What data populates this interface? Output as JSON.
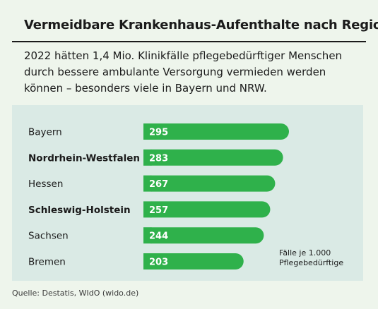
{
  "title": "Vermeidbare Krankenhaus-Aufenthalte nach Region",
  "subtitle": "2022 hätten 1,4 Mio. Klinikfälle pflegebedürftiger Menschen durch bessere ambulante Versorgung vermieden werden können – besonders viele in Bayern und NRW.",
  "source": "Quelle: Destatis, WIdO (wido.de)",
  "unit_label": "Fälle je 1.000",
  "unit_label2": "Pflegebedürftige",
  "colors": {
    "bar": "#2fb14b",
    "panel": "#daeae5",
    "background": "#eef5ec",
    "text": "#1b1b1b"
  },
  "chart_data": {
    "type": "bar",
    "orientation": "horizontal",
    "categories": [
      "Bayern",
      "Nordrhein-Westfalen",
      "Hessen",
      "Schleswig-Holstein",
      "Sachsen",
      "Bremen"
    ],
    "bold_categories": [
      "Nordrhein-Westfalen",
      "Schleswig-Holstein"
    ],
    "values": [
      295,
      283,
      267,
      257,
      244,
      203
    ],
    "xlim": [
      0,
      295
    ],
    "grid": false,
    "legend": "none"
  }
}
